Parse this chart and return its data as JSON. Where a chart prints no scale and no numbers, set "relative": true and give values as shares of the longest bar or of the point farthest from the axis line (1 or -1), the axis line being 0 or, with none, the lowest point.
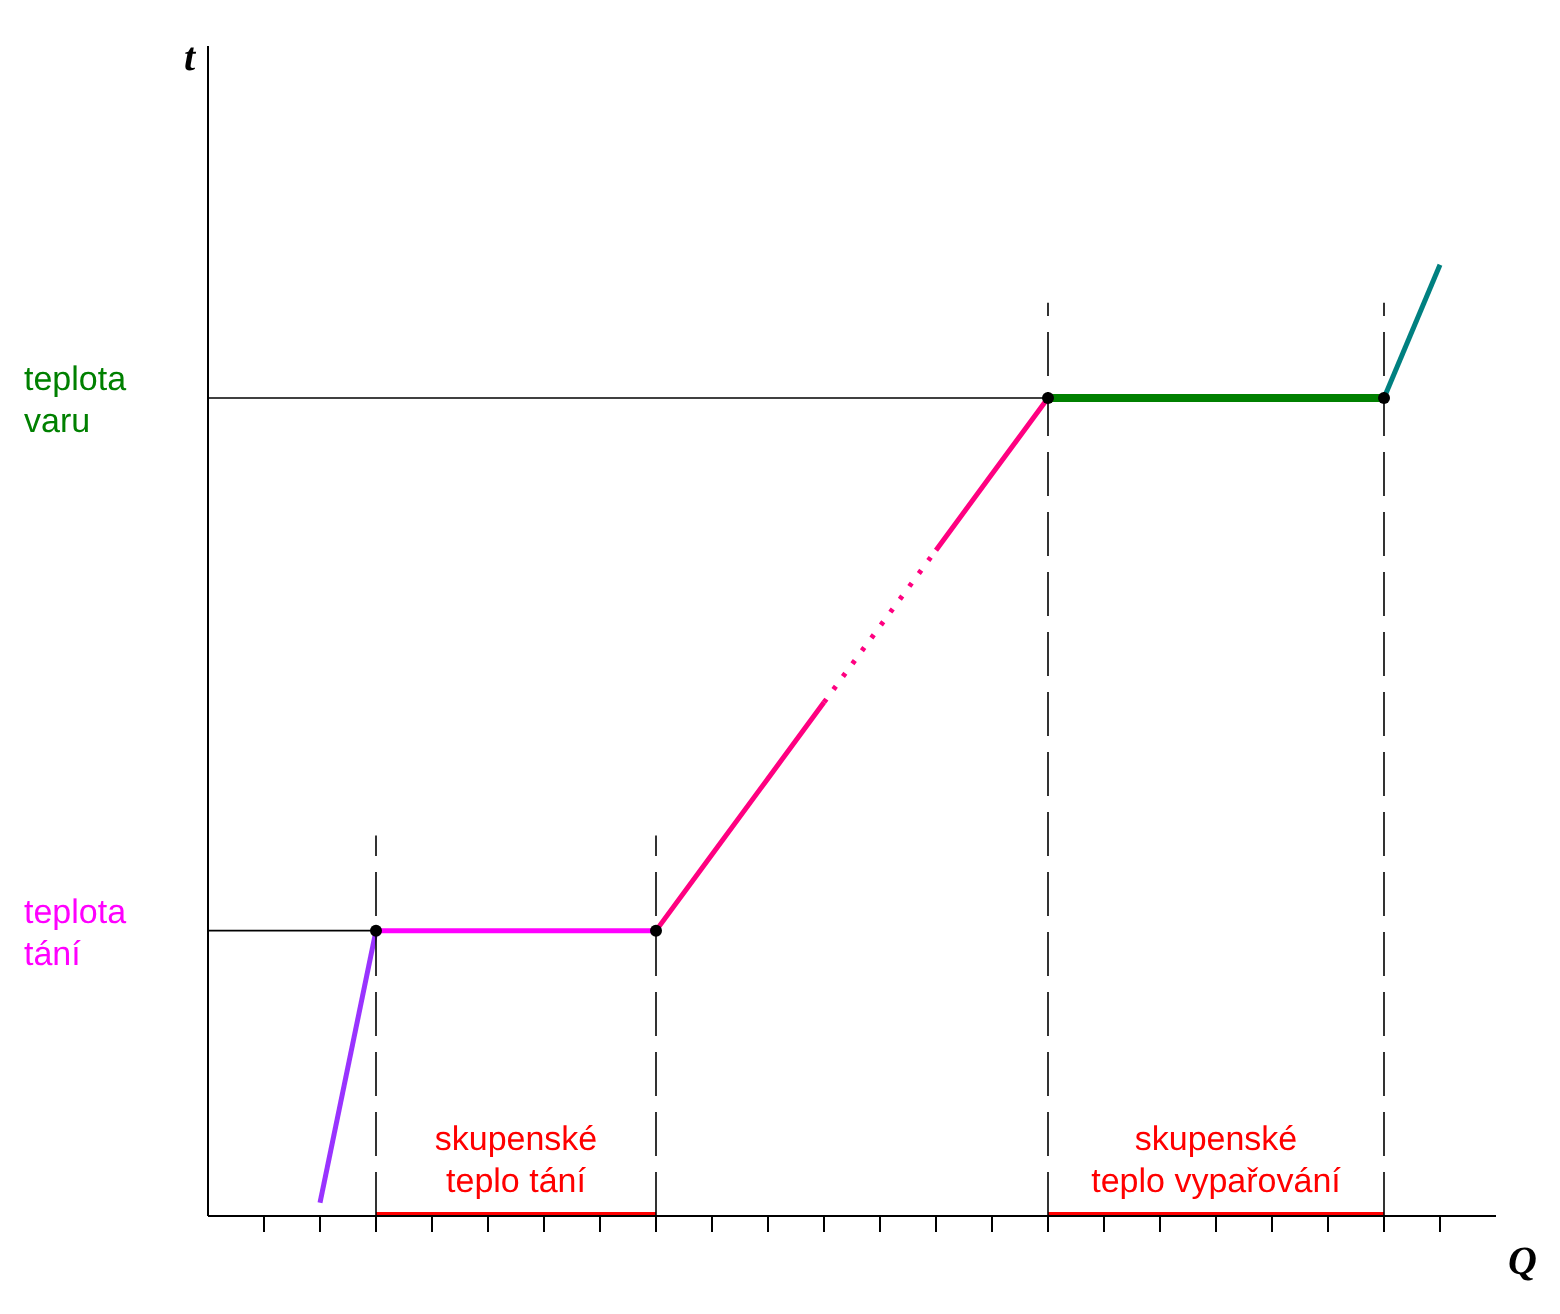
{
  "chart_data": {
    "type": "line",
    "relative": true,
    "xlabel": "Q",
    "ylabel": "t",
    "grid": false,
    "legend": false,
    "categories": [
      null,
      null,
      null,
      null,
      null,
      null,
      null,
      null,
      null,
      null,
      null,
      null,
      null,
      null,
      null,
      null,
      null,
      null,
      null,
      null,
      null,
      null
    ],
    "series": [
      {
        "color": "#9933ff",
        "values": [
          null,
          0.014,
          0.3,
          null,
          null,
          null,
          null,
          null,
          null,
          null,
          null,
          null,
          null,
          null,
          null,
          null,
          null,
          null,
          null,
          null,
          null,
          null
        ]
      },
      {
        "color": "#ff00ff",
        "values": [
          null,
          null,
          0.3,
          0.3,
          0.3,
          0.3,
          0.3,
          0.3,
          null,
          null,
          null,
          null,
          null,
          null,
          null,
          null,
          null,
          null,
          null,
          null,
          null,
          null
        ]
      },
      {
        "color": "#ff0080",
        "values": [
          null,
          null,
          null,
          null,
          null,
          null,
          null,
          0.3,
          0.38,
          0.46,
          0.54,
          null,
          null,
          null,
          null,
          null,
          null,
          null,
          null,
          null,
          null,
          null
        ]
      },
      {
        "color": "#ff0080",
        "line_style": "dotted",
        "values": [
          null,
          null,
          null,
          null,
          null,
          null,
          null,
          null,
          null,
          null,
          0.54,
          0.62,
          0.7,
          null,
          null,
          null,
          null,
          null,
          null,
          null,
          null,
          null
        ]
      },
      {
        "color": "#ff0080",
        "values": [
          null,
          null,
          null,
          null,
          null,
          null,
          null,
          null,
          null,
          null,
          null,
          null,
          0.7,
          0.78,
          0.86,
          null,
          null,
          null,
          null,
          null,
          null,
          null
        ]
      },
      {
        "color": "#008000",
        "values": [
          null,
          null,
          null,
          null,
          null,
          null,
          null,
          null,
          null,
          null,
          null,
          null,
          null,
          null,
          0.86,
          0.86,
          0.86,
          0.86,
          0.86,
          0.86,
          0.86,
          null
        ]
      },
      {
        "color": "#ff0000",
        "values": [
          null,
          null,
          0,
          0,
          0,
          0,
          0,
          0,
          null,
          null,
          null,
          null,
          null,
          null,
          null,
          null,
          null,
          null,
          null,
          null,
          null,
          null
        ]
      },
      {
        "color": "#ff0000",
        "values": [
          null,
          null,
          null,
          null,
          null,
          null,
          null,
          null,
          null,
          null,
          null,
          null,
          null,
          null,
          0,
          0,
          0,
          0,
          0,
          0,
          0,
          null
        ]
      },
      {
        "color": "#008080",
        "values": [
          null,
          null,
          null,
          null,
          null,
          null,
          null,
          null,
          null,
          null,
          null,
          null,
          null,
          null,
          null,
          null,
          null,
          null,
          null,
          null,
          0.86,
          1
        ]
      }
    ],
    "ref_lines": [
      {
        "axis": "y",
        "value": 0.86,
        "label": "teplota varu"
      },
      {
        "axis": "y",
        "value": 0.3,
        "label": "teplota tání"
      }
    ],
    "annotations": [
      "skupenské teplo tání",
      "skupenské teplo vypařování"
    ]
  }
}
